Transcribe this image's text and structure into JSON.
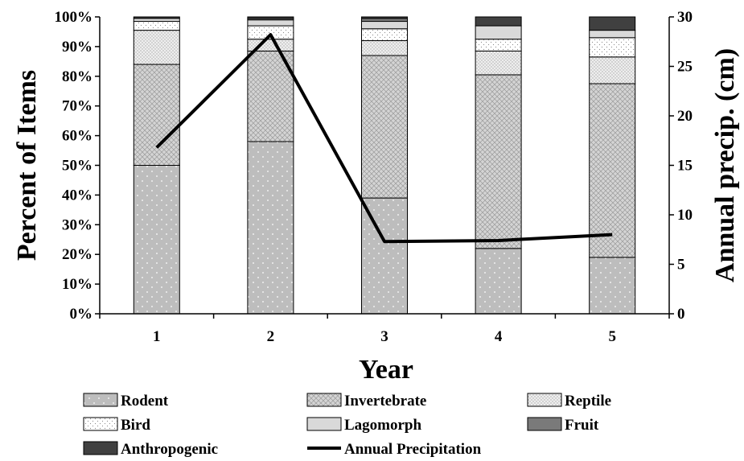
{
  "chart_data": {
    "type": "bar",
    "stacked": true,
    "categories": [
      "1",
      "2",
      "3",
      "4",
      "5"
    ],
    "xlabel": "Year",
    "ylabel": "Percent of Items",
    "y2label": "Annual precip. (cm)",
    "ylim": [
      0,
      100
    ],
    "y_ticks": [
      "0%",
      "10%",
      "20%",
      "30%",
      "40%",
      "50%",
      "60%",
      "70%",
      "80%",
      "90%",
      "100%"
    ],
    "y2lim": [
      0,
      30
    ],
    "y2_ticks": [
      "0",
      "5",
      "10",
      "15",
      "20",
      "25",
      "30"
    ],
    "legend_position": "bottom",
    "series": [
      {
        "name": "Rodent",
        "fill": "#bdbdbd",
        "pattern": "dots-white",
        "values": [
          50,
          58,
          39,
          22,
          19
        ]
      },
      {
        "name": "Invertebrate",
        "fill": "#d4d4d4",
        "pattern": "crosshatch",
        "values": [
          34,
          30.5,
          48,
          58.5,
          58.5
        ]
      },
      {
        "name": "Reptile",
        "fill": "#ececec",
        "pattern": "fine-dots",
        "values": [
          11.5,
          4,
          5,
          8,
          9
        ]
      },
      {
        "name": "Bird",
        "fill": "#ffffff",
        "pattern": "sparse-dots",
        "values": [
          3,
          4.5,
          4,
          4,
          6.5
        ]
      },
      {
        "name": "Lagomorph",
        "fill": "#d9d9d9",
        "pattern": "none",
        "values": [
          1,
          2,
          2.5,
          4.5,
          2.5
        ]
      },
      {
        "name": "Fruit",
        "fill": "#7a7a7a",
        "pattern": "none",
        "values": [
          0,
          0.5,
          1,
          0,
          0
        ]
      },
      {
        "name": "Anthropogenic",
        "fill": "#404040",
        "pattern": "none",
        "values": [
          0.5,
          0.5,
          0.5,
          3,
          4.5
        ]
      }
    ],
    "line_series": {
      "name": "Annual Precipitation",
      "axis": "right",
      "color": "#000000",
      "values": [
        16.8,
        28.2,
        7.3,
        7.4,
        8.0
      ]
    }
  }
}
